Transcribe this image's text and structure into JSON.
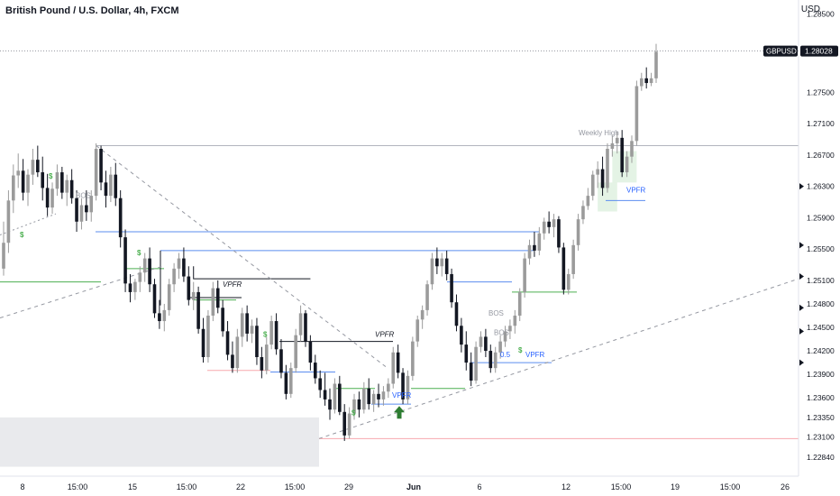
{
  "header": {
    "title": "British Pound / U.S. Dollar, 4h, FXCM",
    "currency": "USD"
  },
  "price_badge": {
    "symbol": "GBPUSD",
    "value": "1.28028"
  },
  "colors": {
    "up": "#9b9b9b",
    "down": "#131722",
    "green": "#4caf50",
    "blue": "#2962ff",
    "red": "#f23645",
    "gray": "#b2b5be",
    "dark_line": "#131722"
  },
  "chart_data": {
    "type": "candlestick",
    "title": "British Pound / U.S. Dollar, 4h, FXCM",
    "y_axis": {
      "label": "USD",
      "ticks": [
        "1.28500",
        "1.27500",
        "1.27100",
        "1.26700",
        "1.26300",
        "1.25900",
        "1.25500",
        "1.25100",
        "1.24800",
        "1.24500",
        "1.24200",
        "1.23900",
        "1.23600",
        "1.23350",
        "1.23100",
        "1.22840"
      ]
    },
    "x_axis": {
      "ticks": [
        "8",
        "15:00",
        "15",
        "15:00",
        "22",
        "15:00",
        "29",
        "Jun",
        "6",
        "12",
        "15:00",
        "19",
        "15:00",
        "26"
      ]
    },
    "last_price": 1.28028,
    "candles": [
      [
        1.2525,
        1.2585,
        1.2516,
        1.2558
      ],
      [
        1.2558,
        1.2625,
        1.2545,
        1.2612
      ],
      [
        1.2612,
        1.2658,
        1.2596,
        1.2644
      ],
      [
        1.2644,
        1.2672,
        1.2628,
        1.265
      ],
      [
        1.265,
        1.2665,
        1.2612,
        1.2622
      ],
      [
        1.2622,
        1.2652,
        1.2605,
        1.2645
      ],
      [
        1.2645,
        1.2678,
        1.2632,
        1.2664
      ],
      [
        1.2664,
        1.2682,
        1.2642,
        1.2648
      ],
      [
        1.2648,
        1.2668,
        1.2612,
        1.2628
      ],
      [
        1.2628,
        1.2646,
        1.2592,
        1.2603
      ],
      [
        1.2603,
        1.2635,
        1.2595,
        1.2627
      ],
      [
        1.2627,
        1.2658,
        1.2618,
        1.2648
      ],
      [
        1.2648,
        1.2655,
        1.2614,
        1.2622
      ],
      [
        1.2622,
        1.2645,
        1.2605,
        1.2638
      ],
      [
        1.2638,
        1.2652,
        1.2608,
        1.2615
      ],
      [
        1.2615,
        1.2625,
        1.2572,
        1.2585
      ],
      [
        1.2585,
        1.2615,
        1.2575,
        1.2606
      ],
      [
        1.2606,
        1.2625,
        1.2586,
        1.2597
      ],
      [
        1.2597,
        1.2625,
        1.2585,
        1.2618
      ],
      [
        1.2618,
        1.2685,
        1.2612,
        1.2678
      ],
      [
        1.2678,
        1.2682,
        1.2625,
        1.2635
      ],
      [
        1.2635,
        1.265,
        1.2603,
        1.2618
      ],
      [
        1.2618,
        1.2655,
        1.261,
        1.2645
      ],
      [
        1.2645,
        1.266,
        1.2605,
        1.2615
      ],
      [
        1.2615,
        1.2625,
        1.2552,
        1.2565
      ],
      [
        1.2565,
        1.2575,
        1.2495,
        1.2506
      ],
      [
        1.2506,
        1.2518,
        1.2482,
        1.2495
      ],
      [
        1.2495,
        1.2512,
        1.2485,
        1.2508
      ],
      [
        1.2508,
        1.2528,
        1.2495,
        1.252
      ],
      [
        1.252,
        1.2545,
        1.2508,
        1.2538
      ],
      [
        1.2538,
        1.2552,
        1.2495,
        1.2505
      ],
      [
        1.2505,
        1.2512,
        1.2462,
        1.2468
      ],
      [
        1.2468,
        1.2485,
        1.2448,
        1.2458
      ],
      [
        1.2458,
        1.248,
        1.2445,
        1.2472
      ],
      [
        1.2472,
        1.2512,
        1.2465,
        1.2505
      ],
      [
        1.2505,
        1.2532,
        1.2495,
        1.2525
      ],
      [
        1.2525,
        1.2545,
        1.2512,
        1.2538
      ],
      [
        1.2538,
        1.2552,
        1.2508,
        1.2515
      ],
      [
        1.2515,
        1.2528,
        1.2478,
        1.2485
      ],
      [
        1.2485,
        1.2508,
        1.2472,
        1.2495
      ],
      [
        1.2495,
        1.2502,
        1.2442,
        1.2448
      ],
      [
        1.2448,
        1.2462,
        1.2405,
        1.2412
      ],
      [
        1.2412,
        1.2472,
        1.2405,
        1.2465
      ],
      [
        1.2465,
        1.2508,
        1.2458,
        1.25
      ],
      [
        1.25,
        1.251,
        1.2468,
        1.2475
      ],
      [
        1.2475,
        1.2485,
        1.2438,
        1.2445
      ],
      [
        1.2445,
        1.2458,
        1.2408,
        1.2415
      ],
      [
        1.2415,
        1.2432,
        1.2392,
        1.2398
      ],
      [
        1.2398,
        1.2448,
        1.2392,
        1.2438
      ],
      [
        1.2438,
        1.2475,
        1.2425,
        1.2468
      ],
      [
        1.2468,
        1.2478,
        1.2432,
        1.2442
      ],
      [
        1.2442,
        1.246,
        1.243,
        1.2452
      ],
      [
        1.2452,
        1.2462,
        1.2402,
        1.2412
      ],
      [
        1.2412,
        1.2425,
        1.2385,
        1.2395
      ],
      [
        1.2395,
        1.2438,
        1.239,
        1.2428
      ],
      [
        1.2428,
        1.2465,
        1.2422,
        1.2458
      ],
      [
        1.2458,
        1.2468,
        1.2415,
        1.2422
      ],
      [
        1.2422,
        1.2435,
        1.2385,
        1.2392
      ],
      [
        1.2392,
        1.2402,
        1.2358,
        1.2365
      ],
      [
        1.2365,
        1.2405,
        1.236,
        1.2398
      ],
      [
        1.2398,
        1.2448,
        1.2392,
        1.244
      ],
      [
        1.244,
        1.2478,
        1.2432,
        1.2468
      ],
      [
        1.2468,
        1.2472,
        1.2425,
        1.2432
      ],
      [
        1.2432,
        1.244,
        1.2395,
        1.2405
      ],
      [
        1.2405,
        1.2415,
        1.2378,
        1.2385
      ],
      [
        1.2385,
        1.2395,
        1.236,
        1.237
      ],
      [
        1.237,
        1.2392,
        1.235,
        1.2358
      ],
      [
        1.2358,
        1.2372,
        1.2332,
        1.2345
      ],
      [
        1.2345,
        1.2385,
        1.234,
        1.2378
      ],
      [
        1.2378,
        1.2388,
        1.2338,
        1.2342
      ],
      [
        1.2342,
        1.2352,
        1.2305,
        1.2312
      ],
      [
        1.2312,
        1.2348,
        1.2308,
        1.234
      ],
      [
        1.234,
        1.2365,
        1.2332,
        1.2358
      ],
      [
        1.2358,
        1.2368,
        1.2335,
        1.2345
      ],
      [
        1.2345,
        1.238,
        1.234,
        1.2372
      ],
      [
        1.2372,
        1.2385,
        1.2345,
        1.2352
      ],
      [
        1.2352,
        1.237,
        1.2342,
        1.2365
      ],
      [
        1.2365,
        1.2378,
        1.2348,
        1.2358
      ],
      [
        1.2358,
        1.2375,
        1.235,
        1.2368
      ],
      [
        1.2368,
        1.2385,
        1.236,
        1.2378
      ],
      [
        1.2378,
        1.2425,
        1.2372,
        1.2418
      ],
      [
        1.2418,
        1.2428,
        1.2385,
        1.2392
      ],
      [
        1.2392,
        1.2398,
        1.2352,
        1.2358
      ],
      [
        1.2358,
        1.2395,
        1.2352,
        1.2388
      ],
      [
        1.2388,
        1.2438,
        1.2382,
        1.2432
      ],
      [
        1.2432,
        1.2465,
        1.2425,
        1.246
      ],
      [
        1.246,
        1.2478,
        1.2448,
        1.2472
      ],
      [
        1.2472,
        1.251,
        1.2465,
        1.2505
      ],
      [
        1.2505,
        1.2545,
        1.2498,
        1.2538
      ],
      [
        1.2538,
        1.2552,
        1.2518,
        1.2528
      ],
      [
        1.2528,
        1.2545,
        1.2515,
        1.2538
      ],
      [
        1.2538,
        1.2548,
        1.251,
        1.2518
      ],
      [
        1.2518,
        1.2525,
        1.2475,
        1.2482
      ],
      [
        1.2482,
        1.2492,
        1.2445,
        1.2452
      ],
      [
        1.2452,
        1.2462,
        1.2418,
        1.2428
      ],
      [
        1.2428,
        1.2445,
        1.2395,
        1.2405
      ],
      [
        1.2405,
        1.2418,
        1.2375,
        1.2382
      ],
      [
        1.2382,
        1.2432,
        1.2378,
        1.2425
      ],
      [
        1.2425,
        1.2445,
        1.2418,
        1.2438
      ],
      [
        1.2438,
        1.2448,
        1.2412,
        1.242
      ],
      [
        1.242,
        1.2428,
        1.2392,
        1.2398
      ],
      [
        1.2398,
        1.2425,
        1.2392,
        1.2418
      ],
      [
        1.2418,
        1.244,
        1.241,
        1.2432
      ],
      [
        1.2432,
        1.2452,
        1.2425,
        1.2445
      ],
      [
        1.2445,
        1.246,
        1.2435,
        1.2452
      ],
      [
        1.2452,
        1.2472,
        1.2442,
        1.2465
      ],
      [
        1.2465,
        1.25,
        1.2458,
        1.2495
      ],
      [
        1.2495,
        1.2545,
        1.2488,
        1.2538
      ],
      [
        1.2538,
        1.2562,
        1.253,
        1.2555
      ],
      [
        1.2555,
        1.2572,
        1.254,
        1.2548
      ],
      [
        1.2548,
        1.2578,
        1.2542,
        1.257
      ],
      [
        1.257,
        1.259,
        1.2562,
        1.2585
      ],
      [
        1.2585,
        1.2598,
        1.257,
        1.2578
      ],
      [
        1.2578,
        1.2595,
        1.2565,
        1.2588
      ],
      [
        1.2588,
        1.2592,
        1.2545,
        1.2552
      ],
      [
        1.2552,
        1.2558,
        1.2492,
        1.2498
      ],
      [
        1.2498,
        1.2525,
        1.2492,
        1.2518
      ],
      [
        1.2518,
        1.2562,
        1.2512,
        1.2555
      ],
      [
        1.2555,
        1.2595,
        1.2548,
        1.2588
      ],
      [
        1.2588,
        1.2612,
        1.2582,
        1.2605
      ],
      [
        1.2605,
        1.2628,
        1.26,
        1.2618
      ],
      [
        1.2618,
        1.265,
        1.2612,
        1.2645
      ],
      [
        1.2645,
        1.2662,
        1.2628,
        1.2652
      ],
      [
        1.2652,
        1.2668,
        1.2618,
        1.2628
      ],
      [
        1.2628,
        1.2685,
        1.2622,
        1.2678
      ],
      [
        1.2678,
        1.2695,
        1.2668,
        1.2685
      ],
      [
        1.2685,
        1.27,
        1.2672,
        1.2692
      ],
      [
        1.2692,
        1.2702,
        1.2642,
        1.2648
      ],
      [
        1.2648,
        1.2675,
        1.2642,
        1.2668
      ],
      [
        1.2668,
        1.2695,
        1.266,
        1.2688
      ],
      [
        1.2688,
        1.2765,
        1.2682,
        1.2758
      ],
      [
        1.2758,
        1.2775,
        1.2752,
        1.2768
      ],
      [
        1.2768,
        1.2782,
        1.2755,
        1.2762
      ],
      [
        1.2762,
        1.2775,
        1.2758,
        1.2768
      ],
      [
        1.2768,
        1.2812,
        1.2762,
        1.2802
      ]
    ],
    "annotations": {
      "texts": [
        {
          "label": "Weekly High",
          "color": "gray"
        },
        {
          "label": "BOS",
          "color": "gray"
        },
        {
          "label": "BOS",
          "color": "gray"
        },
        {
          "label": "BOS",
          "color": "gray"
        },
        {
          "label": "VPFR",
          "color": "dark"
        },
        {
          "label": "VPFR",
          "color": "dark"
        },
        {
          "label": "VPFR",
          "color": "blue"
        },
        {
          "label": "VPFR",
          "color": "blue"
        },
        {
          "label": "VPFR",
          "color": "blue"
        },
        {
          "label": "0.5",
          "color": "blue"
        },
        {
          "label": "$",
          "color": "green"
        },
        {
          "label": "$",
          "color": "green"
        },
        {
          "label": "$",
          "color": "green"
        },
        {
          "label": "$",
          "color": "green"
        },
        {
          "label": "$",
          "color": "green"
        },
        {
          "label": "$",
          "color": "green"
        }
      ]
    }
  }
}
